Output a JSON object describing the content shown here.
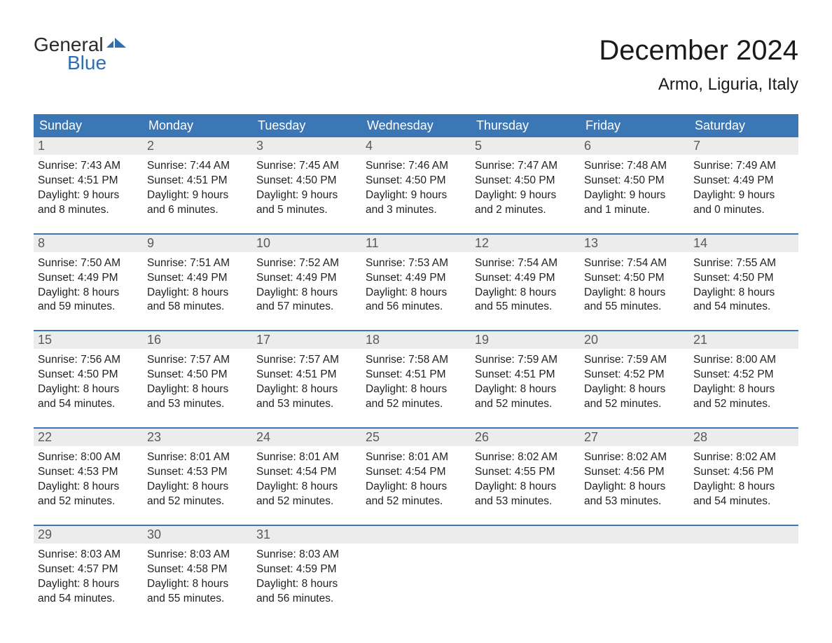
{
  "logo": {
    "general": "General",
    "blue": "Blue"
  },
  "title": "December 2024",
  "location": "Armo, Liguria, Italy",
  "colors": {
    "header_bg": "#3b77b5",
    "header_fg": "#ffffff",
    "daynum_bg": "#ececec",
    "daynum_fg": "#5a5a5a",
    "week_border": "#3b77b5",
    "text": "#222222",
    "logo_blue": "#2f6fb0",
    "background": "#ffffff"
  },
  "typography": {
    "title_fontsize": 40,
    "location_fontsize": 24,
    "dayname_fontsize": 18,
    "daynum_fontsize": 18,
    "body_fontsize": 15.5,
    "font_family": "Arial"
  },
  "daynames": [
    "Sunday",
    "Monday",
    "Tuesday",
    "Wednesday",
    "Thursday",
    "Friday",
    "Saturday"
  ],
  "weeks": [
    [
      {
        "n": "1",
        "sr": "Sunrise: 7:43 AM",
        "ss": "Sunset: 4:51 PM",
        "d1": "Daylight: 9 hours",
        "d2": "and 8 minutes."
      },
      {
        "n": "2",
        "sr": "Sunrise: 7:44 AM",
        "ss": "Sunset: 4:51 PM",
        "d1": "Daylight: 9 hours",
        "d2": "and 6 minutes."
      },
      {
        "n": "3",
        "sr": "Sunrise: 7:45 AM",
        "ss": "Sunset: 4:50 PM",
        "d1": "Daylight: 9 hours",
        "d2": "and 5 minutes."
      },
      {
        "n": "4",
        "sr": "Sunrise: 7:46 AM",
        "ss": "Sunset: 4:50 PM",
        "d1": "Daylight: 9 hours",
        "d2": "and 3 minutes."
      },
      {
        "n": "5",
        "sr": "Sunrise: 7:47 AM",
        "ss": "Sunset: 4:50 PM",
        "d1": "Daylight: 9 hours",
        "d2": "and 2 minutes."
      },
      {
        "n": "6",
        "sr": "Sunrise: 7:48 AM",
        "ss": "Sunset: 4:50 PM",
        "d1": "Daylight: 9 hours",
        "d2": "and 1 minute."
      },
      {
        "n": "7",
        "sr": "Sunrise: 7:49 AM",
        "ss": "Sunset: 4:49 PM",
        "d1": "Daylight: 9 hours",
        "d2": "and 0 minutes."
      }
    ],
    [
      {
        "n": "8",
        "sr": "Sunrise: 7:50 AM",
        "ss": "Sunset: 4:49 PM",
        "d1": "Daylight: 8 hours",
        "d2": "and 59 minutes."
      },
      {
        "n": "9",
        "sr": "Sunrise: 7:51 AM",
        "ss": "Sunset: 4:49 PM",
        "d1": "Daylight: 8 hours",
        "d2": "and 58 minutes."
      },
      {
        "n": "10",
        "sr": "Sunrise: 7:52 AM",
        "ss": "Sunset: 4:49 PM",
        "d1": "Daylight: 8 hours",
        "d2": "and 57 minutes."
      },
      {
        "n": "11",
        "sr": "Sunrise: 7:53 AM",
        "ss": "Sunset: 4:49 PM",
        "d1": "Daylight: 8 hours",
        "d2": "and 56 minutes."
      },
      {
        "n": "12",
        "sr": "Sunrise: 7:54 AM",
        "ss": "Sunset: 4:49 PM",
        "d1": "Daylight: 8 hours",
        "d2": "and 55 minutes."
      },
      {
        "n": "13",
        "sr": "Sunrise: 7:54 AM",
        "ss": "Sunset: 4:50 PM",
        "d1": "Daylight: 8 hours",
        "d2": "and 55 minutes."
      },
      {
        "n": "14",
        "sr": "Sunrise: 7:55 AM",
        "ss": "Sunset: 4:50 PM",
        "d1": "Daylight: 8 hours",
        "d2": "and 54 minutes."
      }
    ],
    [
      {
        "n": "15",
        "sr": "Sunrise: 7:56 AM",
        "ss": "Sunset: 4:50 PM",
        "d1": "Daylight: 8 hours",
        "d2": "and 54 minutes."
      },
      {
        "n": "16",
        "sr": "Sunrise: 7:57 AM",
        "ss": "Sunset: 4:50 PM",
        "d1": "Daylight: 8 hours",
        "d2": "and 53 minutes."
      },
      {
        "n": "17",
        "sr": "Sunrise: 7:57 AM",
        "ss": "Sunset: 4:51 PM",
        "d1": "Daylight: 8 hours",
        "d2": "and 53 minutes."
      },
      {
        "n": "18",
        "sr": "Sunrise: 7:58 AM",
        "ss": "Sunset: 4:51 PM",
        "d1": "Daylight: 8 hours",
        "d2": "and 52 minutes."
      },
      {
        "n": "19",
        "sr": "Sunrise: 7:59 AM",
        "ss": "Sunset: 4:51 PM",
        "d1": "Daylight: 8 hours",
        "d2": "and 52 minutes."
      },
      {
        "n": "20",
        "sr": "Sunrise: 7:59 AM",
        "ss": "Sunset: 4:52 PM",
        "d1": "Daylight: 8 hours",
        "d2": "and 52 minutes."
      },
      {
        "n": "21",
        "sr": "Sunrise: 8:00 AM",
        "ss": "Sunset: 4:52 PM",
        "d1": "Daylight: 8 hours",
        "d2": "and 52 minutes."
      }
    ],
    [
      {
        "n": "22",
        "sr": "Sunrise: 8:00 AM",
        "ss": "Sunset: 4:53 PM",
        "d1": "Daylight: 8 hours",
        "d2": "and 52 minutes."
      },
      {
        "n": "23",
        "sr": "Sunrise: 8:01 AM",
        "ss": "Sunset: 4:53 PM",
        "d1": "Daylight: 8 hours",
        "d2": "and 52 minutes."
      },
      {
        "n": "24",
        "sr": "Sunrise: 8:01 AM",
        "ss": "Sunset: 4:54 PM",
        "d1": "Daylight: 8 hours",
        "d2": "and 52 minutes."
      },
      {
        "n": "25",
        "sr": "Sunrise: 8:01 AM",
        "ss": "Sunset: 4:54 PM",
        "d1": "Daylight: 8 hours",
        "d2": "and 52 minutes."
      },
      {
        "n": "26",
        "sr": "Sunrise: 8:02 AM",
        "ss": "Sunset: 4:55 PM",
        "d1": "Daylight: 8 hours",
        "d2": "and 53 minutes."
      },
      {
        "n": "27",
        "sr": "Sunrise: 8:02 AM",
        "ss": "Sunset: 4:56 PM",
        "d1": "Daylight: 8 hours",
        "d2": "and 53 minutes."
      },
      {
        "n": "28",
        "sr": "Sunrise: 8:02 AM",
        "ss": "Sunset: 4:56 PM",
        "d1": "Daylight: 8 hours",
        "d2": "and 54 minutes."
      }
    ],
    [
      {
        "n": "29",
        "sr": "Sunrise: 8:03 AM",
        "ss": "Sunset: 4:57 PM",
        "d1": "Daylight: 8 hours",
        "d2": "and 54 minutes."
      },
      {
        "n": "30",
        "sr": "Sunrise: 8:03 AM",
        "ss": "Sunset: 4:58 PM",
        "d1": "Daylight: 8 hours",
        "d2": "and 55 minutes."
      },
      {
        "n": "31",
        "sr": "Sunrise: 8:03 AM",
        "ss": "Sunset: 4:59 PM",
        "d1": "Daylight: 8 hours",
        "d2": "and 56 minutes."
      },
      null,
      null,
      null,
      null
    ]
  ]
}
